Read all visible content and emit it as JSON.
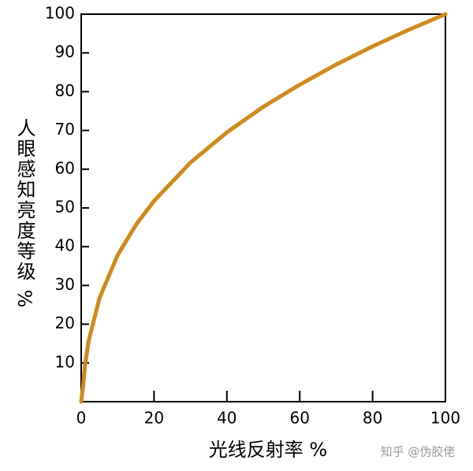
{
  "chart_data": {
    "type": "line",
    "xlabel": "光线反射率 %",
    "ylabel": "人眼感知亮度等级 %",
    "watermark": "知乎 @伪胶佬",
    "x": [
      0,
      0.5,
      1,
      2,
      5,
      10,
      15,
      20,
      30,
      40,
      50,
      60,
      70,
      80,
      90,
      100
    ],
    "series": [
      {
        "color": "#d08a1c",
        "values": [
          0,
          3.8,
          9.0,
          15.5,
          26.7,
          37.8,
          45.6,
          51.8,
          61.7,
          69.5,
          76.1,
          81.8,
          87.0,
          91.7,
          96.0,
          100
        ]
      }
    ],
    "xlim": [
      0,
      100
    ],
    "xticks": [
      0,
      20,
      40,
      60,
      80,
      100
    ],
    "ylim": [
      0,
      100
    ],
    "yticks": [
      10,
      20,
      30,
      40,
      50,
      60,
      70,
      80,
      90,
      100
    ],
    "grid": false
  }
}
